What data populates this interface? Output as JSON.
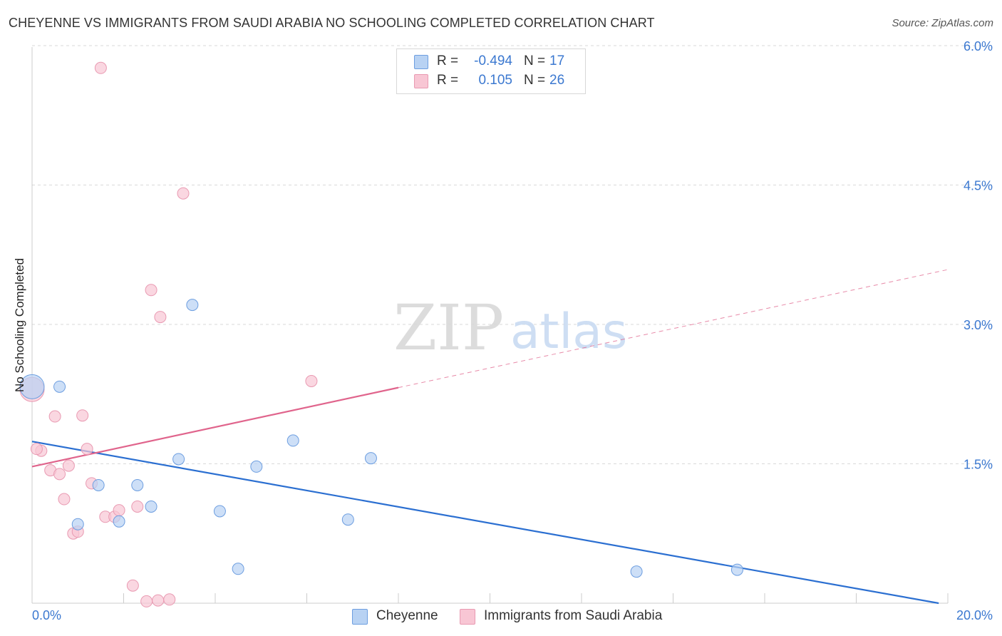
{
  "title": "CHEYENNE VS IMMIGRANTS FROM SAUDI ARABIA NO SCHOOLING COMPLETED CORRELATION CHART",
  "source": "Source: ZipAtlas.com",
  "watermark": {
    "zip": "ZIP",
    "atlas": "atlas"
  },
  "legend": {
    "rows": [
      {
        "r_label": "R =",
        "r_value": "-0.494",
        "n_label": "N =",
        "n_value": "17"
      },
      {
        "r_label": "R =",
        "r_value": "0.105",
        "n_label": "N =",
        "n_value": "26"
      }
    ]
  },
  "bottom_legend": {
    "series1": "Cheyenne",
    "series2": "Immigrants from Saudi Arabia"
  },
  "colors": {
    "blue_fill": "#b8d2f3",
    "blue_stroke": "#6d9ee0",
    "blue_line": "#2b6fd1",
    "pink_fill": "#f8c6d4",
    "pink_stroke": "#e99ab2",
    "pink_line": "#e0648c",
    "axis_text": "#3b78d0",
    "grid": "#d9d9d9"
  },
  "chart_data": {
    "type": "scatter",
    "title": "CHEYENNE VS IMMIGRANTS FROM SAUDI ARABIA NO SCHOOLING COMPLETED CORRELATION CHART",
    "xlabel": "",
    "ylabel": "No Schooling Completed",
    "xlim": [
      0,
      20
    ],
    "ylim": [
      0,
      6.0
    ],
    "x_tick_labels": [
      "0.0%",
      "20.0%"
    ],
    "y_ticks": [
      1.5,
      3.0,
      4.5,
      6.0
    ],
    "y_tick_labels": [
      "1.5%",
      "3.0%",
      "4.5%",
      "6.0%"
    ],
    "grid": "horizontal dashed",
    "legend_position": "top-center",
    "series": [
      {
        "name": "Cheyenne",
        "color": "#b8d2f3",
        "r": -0.494,
        "n": 17,
        "points": [
          {
            "x": 0.0,
            "y": 2.33,
            "size": "large"
          },
          {
            "x": 0.6,
            "y": 2.33
          },
          {
            "x": 3.5,
            "y": 3.21
          },
          {
            "x": 1.45,
            "y": 1.27
          },
          {
            "x": 1.0,
            "y": 0.85
          },
          {
            "x": 1.9,
            "y": 0.88
          },
          {
            "x": 2.3,
            "y": 1.27
          },
          {
            "x": 2.6,
            "y": 1.04
          },
          {
            "x": 3.2,
            "y": 1.55
          },
          {
            "x": 4.1,
            "y": 0.99
          },
          {
            "x": 4.5,
            "y": 0.37
          },
          {
            "x": 4.9,
            "y": 1.47
          },
          {
            "x": 5.7,
            "y": 1.75
          },
          {
            "x": 6.9,
            "y": 0.9
          },
          {
            "x": 7.4,
            "y": 1.56
          },
          {
            "x": 13.2,
            "y": 0.34
          },
          {
            "x": 15.4,
            "y": 0.36
          }
        ],
        "trend": {
          "x0": 0.0,
          "y0": 1.74,
          "x1": 19.8,
          "y1": 0.0
        }
      },
      {
        "name": "Immigrants from Saudi Arabia",
        "color": "#f8c6d4",
        "r": 0.105,
        "n": 26,
        "points": [
          {
            "x": 0.0,
            "y": 2.3,
            "size": "large"
          },
          {
            "x": 1.5,
            "y": 5.76
          },
          {
            "x": 3.3,
            "y": 4.41
          },
          {
            "x": 2.6,
            "y": 3.37
          },
          {
            "x": 2.8,
            "y": 3.08
          },
          {
            "x": 6.1,
            "y": 2.39
          },
          {
            "x": 0.5,
            "y": 2.01
          },
          {
            "x": 1.1,
            "y": 2.02
          },
          {
            "x": 0.2,
            "y": 1.64
          },
          {
            "x": 1.2,
            "y": 1.66
          },
          {
            "x": 0.4,
            "y": 1.43
          },
          {
            "x": 0.6,
            "y": 1.39
          },
          {
            "x": 0.8,
            "y": 1.48
          },
          {
            "x": 0.7,
            "y": 1.12
          },
          {
            "x": 1.3,
            "y": 1.29
          },
          {
            "x": 1.6,
            "y": 0.93
          },
          {
            "x": 1.8,
            "y": 0.93
          },
          {
            "x": 1.9,
            "y": 1.0
          },
          {
            "x": 2.3,
            "y": 1.04
          },
          {
            "x": 0.9,
            "y": 0.75
          },
          {
            "x": 1.0,
            "y": 0.77
          },
          {
            "x": 2.2,
            "y": 0.19
          },
          {
            "x": 2.5,
            "y": 0.02
          },
          {
            "x": 2.75,
            "y": 0.03
          },
          {
            "x": 3.0,
            "y": 0.04
          },
          {
            "x": 0.1,
            "y": 1.66
          }
        ],
        "trend": {
          "x0": 0.0,
          "y0": 1.47,
          "x1": 8.0,
          "y1": 2.32,
          "dashed_to_x": 20.0,
          "dashed_to_y": 3.59
        }
      }
    ]
  }
}
